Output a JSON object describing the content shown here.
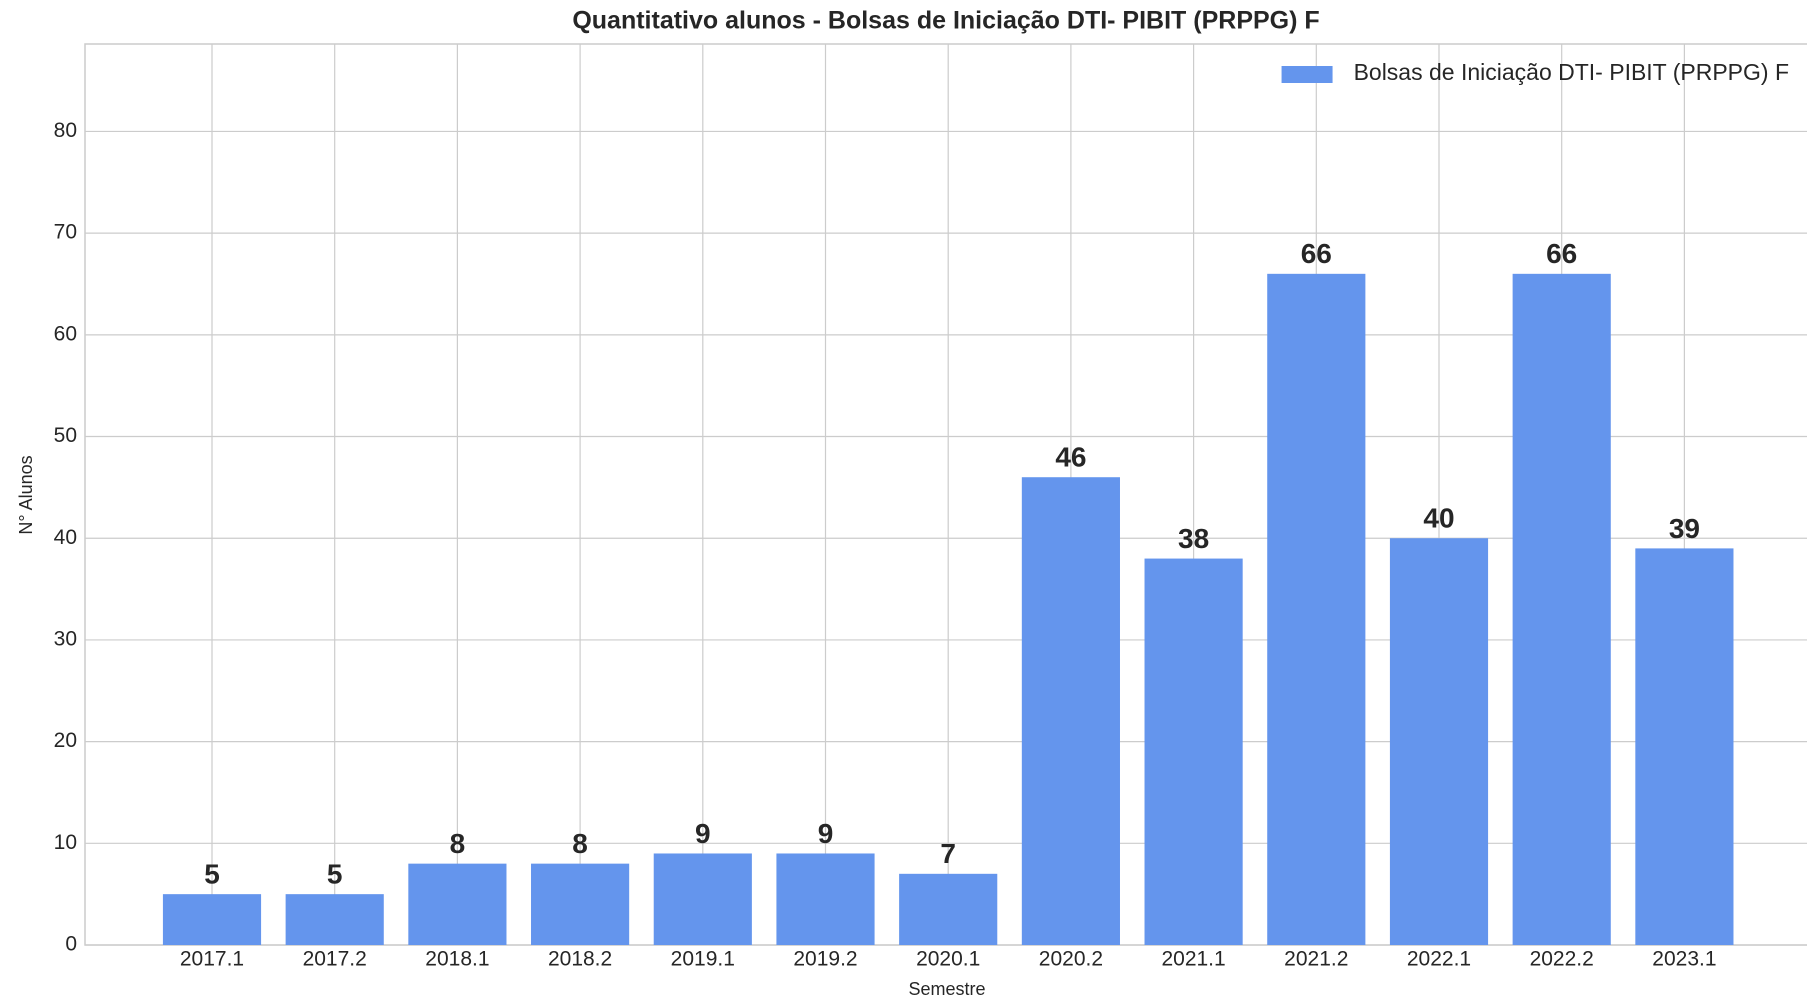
{
  "chart_data": {
    "type": "bar",
    "title": "Quantitativo alunos - Bolsas de Iniciação DTI- PIBIT (PRPPG) F",
    "x_label": "Semestre",
    "y_label": "N° Alunos",
    "categories": [
      "2017.1",
      "2017.2",
      "2018.1",
      "2018.2",
      "2019.1",
      "2019.2",
      "2020.1",
      "2020.2",
      "2021.1",
      "2021.2",
      "2022.1",
      "2022.2",
      "2023.1"
    ],
    "series": [
      {
        "name": "Bolsas de Iniciação DTI- PIBIT (PRPPG) F",
        "color": "#6495ed",
        "values": [
          5,
          5,
          8,
          8,
          9,
          9,
          7,
          46,
          38,
          66,
          40,
          66,
          39
        ]
      }
    ],
    "ylim": [
      0,
      88.6
    ],
    "yticks": [
      0,
      10,
      20,
      30,
      40,
      50,
      60,
      70,
      80
    ],
    "grid": true,
    "legend": "upper right"
  }
}
